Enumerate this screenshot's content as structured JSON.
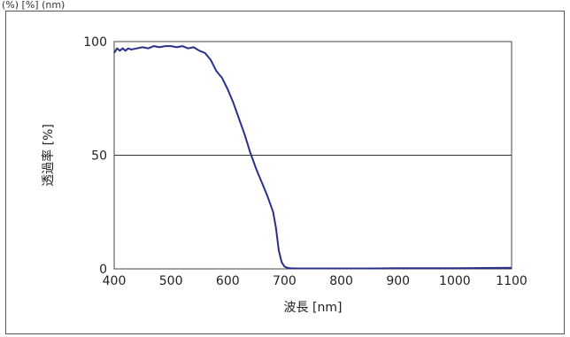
{
  "header": {
    "caption": "(%) [%] (nm)"
  },
  "chart_data": {
    "type": "line",
    "title": "",
    "xlabel": "波長 [nm]",
    "ylabel": "透過率 [%]",
    "xlim": [
      400,
      1100
    ],
    "ylim": [
      0,
      100
    ],
    "x_ticks": [
      400,
      500,
      600,
      700,
      800,
      900,
      1000,
      1100
    ],
    "x_tick_labels": [
      "400",
      "500",
      "600",
      "700",
      "800",
      "900",
      "1000",
      "1100"
    ],
    "y_ticks": [
      0,
      50,
      100
    ],
    "y_tick_labels": [
      "0",
      "50",
      "100"
    ],
    "gridlines_y": [
      50
    ],
    "line_color": "#2b2f8c",
    "series": [
      {
        "x": [
          400,
          405,
          410,
          415,
          420,
          425,
          430,
          440,
          450,
          460,
          470,
          480,
          490,
          500,
          510,
          520,
          530,
          540,
          550,
          560,
          570,
          580,
          590,
          600,
          610,
          620,
          630,
          640,
          650,
          660,
          670,
          680,
          685,
          690,
          695,
          700,
          705,
          710,
          720,
          750,
          800,
          850,
          900,
          950,
          1000,
          1050,
          1100
        ],
        "y": [
          95,
          97,
          96,
          97,
          96,
          97,
          96.5,
          97,
          97.5,
          97,
          98,
          97.5,
          98,
          98,
          97.5,
          98,
          97,
          97.5,
          96,
          95,
          92,
          87,
          84,
          79,
          73,
          66,
          59,
          51,
          44,
          38,
          32,
          25,
          18,
          8,
          3,
          1,
          0.5,
          0.3,
          0.2,
          0.2,
          0.2,
          0.2,
          0.3,
          0.3,
          0.3,
          0.4,
          0.5
        ]
      }
    ]
  }
}
